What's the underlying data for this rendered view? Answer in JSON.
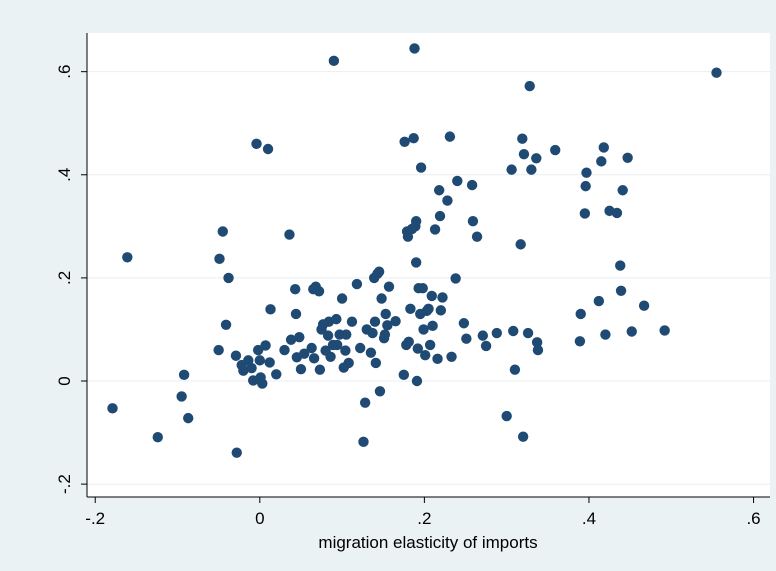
{
  "chart_data": {
    "type": "scatter",
    "title": "",
    "xlabel": "migration elasticity of imports",
    "ylabel": "",
    "xlim": [
      -0.21,
      0.62
    ],
    "ylim": [
      -0.225,
      0.675
    ],
    "x_ticks": [
      {
        "value": -0.2,
        "label": "-.2"
      },
      {
        "value": 0,
        "label": "0"
      },
      {
        "value": 0.2,
        "label": ".2"
      },
      {
        "value": 0.4,
        "label": ".4"
      },
      {
        "value": 0.6,
        "label": ".6"
      }
    ],
    "y_ticks": [
      {
        "value": -0.2,
        "label": "-.2"
      },
      {
        "value": 0,
        "label": "0"
      },
      {
        "value": 0.2,
        "label": ".2"
      },
      {
        "value": 0.4,
        "label": ".4"
      },
      {
        "value": 0.6,
        "label": ".6"
      }
    ],
    "grid": true,
    "legend": "none",
    "colors": {
      "marker": "#1f4a73",
      "background": "#eaf2f3",
      "plot_bg": "#ffffff",
      "grid": "#e8eef0"
    },
    "points": [
      [
        -0.179,
        -0.053
      ],
      [
        -0.161,
        0.24
      ],
      [
        -0.124,
        -0.109
      ],
      [
        -0.095,
        -0.03
      ],
      [
        -0.092,
        0.012
      ],
      [
        -0.087,
        -0.072
      ],
      [
        -0.05,
        0.06
      ],
      [
        -0.049,
        0.237
      ],
      [
        -0.045,
        0.29
      ],
      [
        -0.041,
        0.109
      ],
      [
        -0.038,
        0.2
      ],
      [
        -0.029,
        0.049
      ],
      [
        -0.028,
        -0.139
      ],
      [
        -0.022,
        0.031
      ],
      [
        -0.02,
        0.02
      ],
      [
        -0.014,
        0.04
      ],
      [
        -0.01,
        0.025
      ],
      [
        -0.008,
        0.001
      ],
      [
        -0.004,
        0.46
      ],
      [
        -0.002,
        0.06
      ],
      [
        0.0,
        0.04
      ],
      [
        0.001,
        0.007
      ],
      [
        0.003,
        -0.005
      ],
      [
        0.007,
        0.069
      ],
      [
        0.01,
        0.45
      ],
      [
        0.012,
        0.036
      ],
      [
        0.013,
        0.139
      ],
      [
        0.02,
        0.013
      ],
      [
        0.03,
        0.06
      ],
      [
        0.036,
        0.284
      ],
      [
        0.038,
        0.08
      ],
      [
        0.043,
        0.178
      ],
      [
        0.044,
        0.13
      ],
      [
        0.045,
        0.046
      ],
      [
        0.048,
        0.085
      ],
      [
        0.05,
        0.023
      ],
      [
        0.054,
        0.053
      ],
      [
        0.063,
        0.064
      ],
      [
        0.065,
        0.178
      ],
      [
        0.066,
        0.044
      ],
      [
        0.068,
        0.183
      ],
      [
        0.072,
        0.174
      ],
      [
        0.073,
        0.022
      ],
      [
        0.075,
        0.1
      ],
      [
        0.077,
        0.11
      ],
      [
        0.08,
        0.059
      ],
      [
        0.083,
        0.088
      ],
      [
        0.084,
        0.115
      ],
      [
        0.086,
        0.047
      ],
      [
        0.089,
        0.07
      ],
      [
        0.09,
        0.621
      ],
      [
        0.093,
        0.12
      ],
      [
        0.094,
        0.07
      ],
      [
        0.097,
        0.09
      ],
      [
        0.1,
        0.16
      ],
      [
        0.102,
        0.026
      ],
      [
        0.104,
        0.059
      ],
      [
        0.105,
        0.09
      ],
      [
        0.108,
        0.035
      ],
      [
        0.112,
        0.115
      ],
      [
        0.118,
        0.188
      ],
      [
        0.122,
        0.064
      ],
      [
        0.126,
        -0.118
      ],
      [
        0.128,
        -0.042
      ],
      [
        0.13,
        0.1
      ],
      [
        0.135,
        0.055
      ],
      [
        0.137,
        0.093
      ],
      [
        0.139,
        0.2
      ],
      [
        0.14,
        0.115
      ],
      [
        0.141,
        0.035
      ],
      [
        0.143,
        0.208
      ],
      [
        0.145,
        0.212
      ],
      [
        0.146,
        -0.02
      ],
      [
        0.148,
        0.16
      ],
      [
        0.151,
        0.083
      ],
      [
        0.152,
        0.09
      ],
      [
        0.153,
        0.13
      ],
      [
        0.155,
        0.108
      ],
      [
        0.157,
        0.183
      ],
      [
        0.165,
        0.116
      ],
      [
        0.175,
        0.012
      ],
      [
        0.176,
        0.464
      ],
      [
        0.178,
        0.07
      ],
      [
        0.179,
        0.29
      ],
      [
        0.18,
        0.28
      ],
      [
        0.181,
        0.076
      ],
      [
        0.183,
        0.14
      ],
      [
        0.185,
        0.295
      ],
      [
        0.187,
        0.471
      ],
      [
        0.188,
        0.645
      ],
      [
        0.189,
        0.3
      ],
      [
        0.19,
        0.31
      ],
      [
        0.19,
        0.23
      ],
      [
        0.191,
        0.0
      ],
      [
        0.192,
        0.063
      ],
      [
        0.193,
        0.18
      ],
      [
        0.195,
        0.13
      ],
      [
        0.196,
        0.414
      ],
      [
        0.198,
        0.18
      ],
      [
        0.199,
        0.1
      ],
      [
        0.201,
        0.05
      ],
      [
        0.203,
        0.136
      ],
      [
        0.205,
        0.14
      ],
      [
        0.207,
        0.07
      ],
      [
        0.209,
        0.165
      ],
      [
        0.21,
        0.107
      ],
      [
        0.213,
        0.294
      ],
      [
        0.216,
        0.043
      ],
      [
        0.218,
        0.37
      ],
      [
        0.219,
        0.32
      ],
      [
        0.22,
        0.137
      ],
      [
        0.222,
        0.162
      ],
      [
        0.228,
        0.35
      ],
      [
        0.231,
        0.474
      ],
      [
        0.233,
        0.047
      ],
      [
        0.238,
        0.199
      ],
      [
        0.24,
        0.388
      ],
      [
        0.248,
        0.112
      ],
      [
        0.251,
        0.082
      ],
      [
        0.258,
        0.38
      ],
      [
        0.259,
        0.31
      ],
      [
        0.264,
        0.28
      ],
      [
        0.271,
        0.088
      ],
      [
        0.275,
        0.068
      ],
      [
        0.288,
        0.093
      ],
      [
        0.3,
        -0.068
      ],
      [
        0.306,
        0.41
      ],
      [
        0.308,
        0.097
      ],
      [
        0.31,
        0.022
      ],
      [
        0.317,
        0.265
      ],
      [
        0.319,
        0.47
      ],
      [
        0.32,
        -0.108
      ],
      [
        0.321,
        0.44
      ],
      [
        0.326,
        0.093
      ],
      [
        0.328,
        0.572
      ],
      [
        0.33,
        0.41
      ],
      [
        0.336,
        0.432
      ],
      [
        0.337,
        0.075
      ],
      [
        0.338,
        0.06
      ],
      [
        0.359,
        0.448
      ],
      [
        0.389,
        0.077
      ],
      [
        0.39,
        0.13
      ],
      [
        0.395,
        0.325
      ],
      [
        0.396,
        0.378
      ],
      [
        0.397,
        0.404
      ],
      [
        0.412,
        0.155
      ],
      [
        0.415,
        0.426
      ],
      [
        0.418,
        0.453
      ],
      [
        0.42,
        0.09
      ],
      [
        0.425,
        0.33
      ],
      [
        0.434,
        0.326
      ],
      [
        0.438,
        0.224
      ],
      [
        0.439,
        0.175
      ],
      [
        0.441,
        0.37
      ],
      [
        0.447,
        0.433
      ],
      [
        0.452,
        0.096
      ],
      [
        0.467,
        0.146
      ],
      [
        0.492,
        0.098
      ],
      [
        0.555,
        0.598
      ]
    ]
  }
}
